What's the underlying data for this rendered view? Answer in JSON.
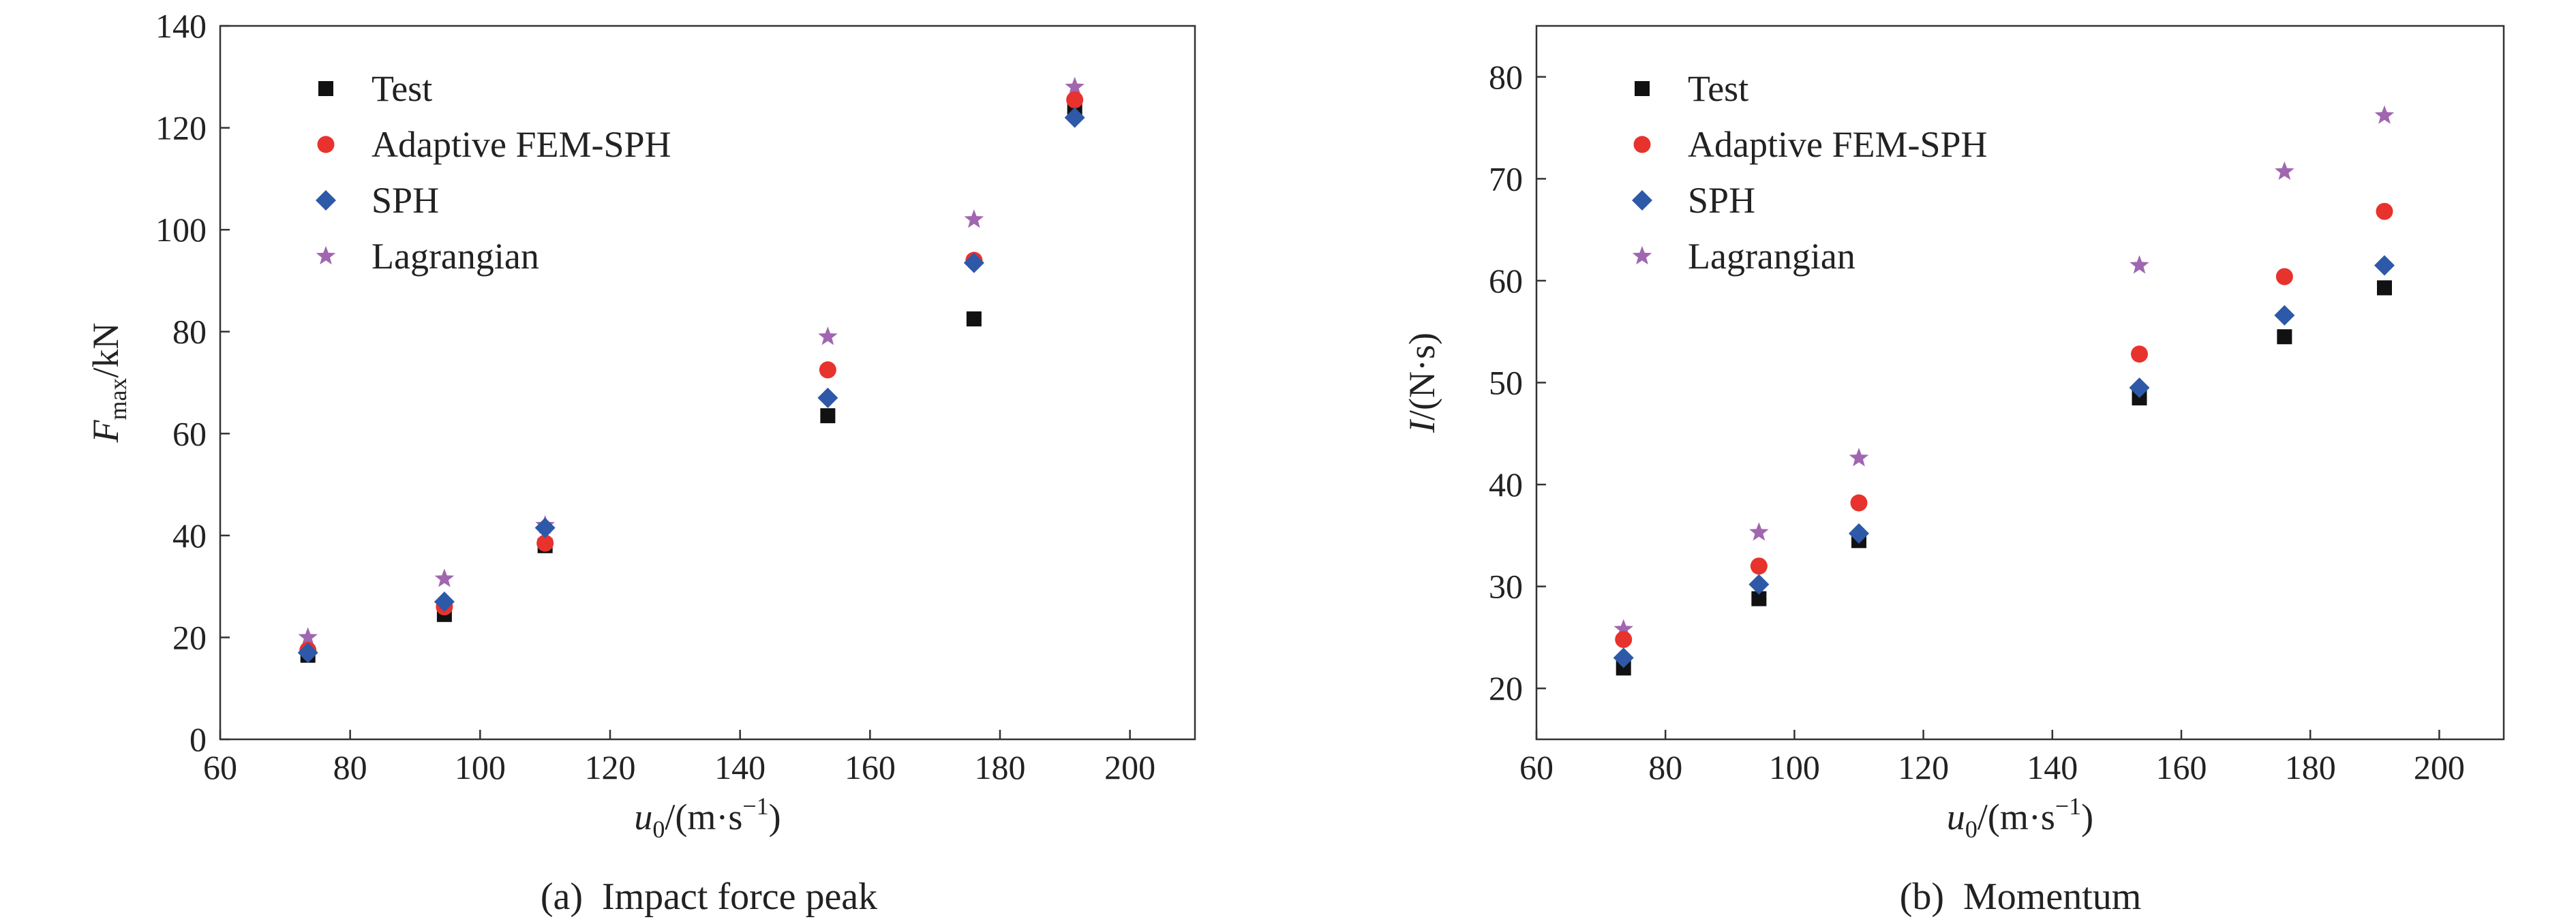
{
  "chart_data": [
    {
      "type": "scatter",
      "panel_label": "(a)",
      "title": "Impact force peak",
      "xlabel": {
        "var": "u",
        "sub": "0",
        "unit": "/(m·s",
        "sup": "−1",
        "close": ")"
      },
      "ylabel": {
        "var": "F",
        "sub": "max",
        "unit": "/kN"
      },
      "xlim": [
        60,
        210
      ],
      "ylim": [
        0,
        140
      ],
      "xticks": [
        60,
        80,
        100,
        120,
        140,
        160,
        180,
        200
      ],
      "yticks": [
        0,
        20,
        40,
        60,
        80,
        100,
        120,
        140
      ],
      "legend_position": "top-left",
      "series": [
        {
          "name": "Test",
          "marker": "square",
          "color": "#111111",
          "x": [
            73.5,
            94.5,
            110,
            153.5,
            176,
            191.5
          ],
          "y": [
            16.5,
            24.5,
            38,
            63.5,
            82.5,
            124
          ]
        },
        {
          "name": "Adaptive FEM-SPH",
          "marker": "circle",
          "color": "#e8322d",
          "x": [
            73.5,
            94.5,
            110,
            153.5,
            176,
            191.5
          ],
          "y": [
            17.5,
            26,
            38.5,
            72.5,
            94,
            125.5
          ]
        },
        {
          "name": "SPH",
          "marker": "diamond",
          "color": "#2e59a8",
          "x": [
            73.5,
            94.5,
            110,
            153.5,
            176,
            191.5
          ],
          "y": [
            17,
            27,
            41.5,
            67,
            93.5,
            122
          ]
        },
        {
          "name": "Lagrangian",
          "marker": "star",
          "color": "#a066b0",
          "x": [
            73.5,
            94.5,
            110,
            153.5,
            176,
            191.5
          ],
          "y": [
            20,
            31.5,
            42,
            79,
            102,
            128
          ]
        }
      ]
    },
    {
      "type": "scatter",
      "panel_label": "(b)",
      "title": "Momentum",
      "xlabel": {
        "var": "u",
        "sub": "0",
        "unit": "/(m·s",
        "sup": "−1",
        "close": ")"
      },
      "ylabel": {
        "var": "I",
        "sub": "",
        "unit": "/(N·s)"
      },
      "xlim": [
        60,
        210
      ],
      "ylim": [
        15,
        85
      ],
      "xticks": [
        60,
        80,
        100,
        120,
        140,
        160,
        180,
        200
      ],
      "yticks": [
        20,
        30,
        40,
        50,
        60,
        70,
        80
      ],
      "legend_position": "top-left",
      "series": [
        {
          "name": "Test",
          "marker": "square",
          "color": "#111111",
          "x": [
            73.5,
            94.5,
            110,
            153.5,
            176,
            191.5
          ],
          "y": [
            22,
            28.8,
            34.5,
            48.5,
            54.5,
            59.3
          ]
        },
        {
          "name": "Adaptive FEM-SPH",
          "marker": "circle",
          "color": "#e8322d",
          "x": [
            73.5,
            94.5,
            110,
            153.5,
            176,
            191.5
          ],
          "y": [
            24.8,
            32,
            38.2,
            52.8,
            60.4,
            66.8
          ]
        },
        {
          "name": "SPH",
          "marker": "diamond",
          "color": "#2e59a8",
          "x": [
            73.5,
            94.5,
            110,
            153.5,
            176,
            191.5
          ],
          "y": [
            23,
            30.2,
            35.2,
            49.5,
            56.6,
            61.5
          ]
        },
        {
          "name": "Lagrangian",
          "marker": "star",
          "color": "#a066b0",
          "x": [
            73.5,
            94.5,
            110,
            153.5,
            176,
            191.5
          ],
          "y": [
            25.8,
            35.3,
            42.6,
            61.5,
            70.7,
            76.2
          ]
        }
      ]
    }
  ]
}
